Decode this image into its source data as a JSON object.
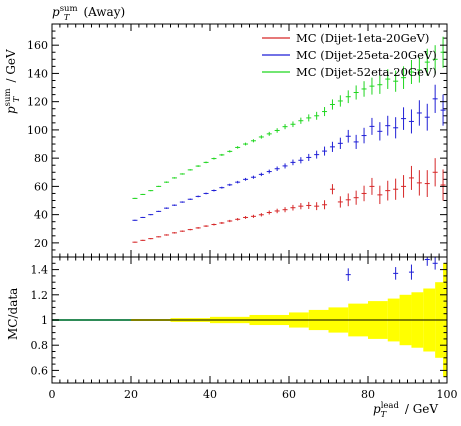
{
  "chart_data": [
    {
      "type": "scatter",
      "title": "p_T^sum (Away)",
      "title_parts": {
        "base": "p",
        "sub": "T",
        "sup": "sum",
        "suffix": " (Away)"
      },
      "ylabel_parts": {
        "base": "p",
        "sub": "T",
        "sup": "sum",
        "suffix": " / GeV"
      },
      "xlim": [
        0,
        100
      ],
      "ylim": [
        10,
        175
      ],
      "yticks": [
        20,
        40,
        60,
        80,
        100,
        120,
        140,
        160
      ],
      "legend_position": "top-right",
      "series": [
        {
          "name": "MC (Dijet-1eta-20GeV)",
          "color": "#d62728",
          "x": [
            21,
            23,
            25,
            27,
            29,
            31,
            33,
            35,
            37,
            39,
            41,
            43,
            45,
            47,
            49,
            51,
            53,
            55,
            57,
            59,
            61,
            63,
            65,
            67,
            69,
            71,
            73,
            75,
            77,
            79,
            81,
            83,
            85,
            87,
            89,
            91,
            93,
            95,
            97,
            99
          ],
          "y": [
            20.5,
            21.8,
            23.0,
            24.3,
            25.6,
            27.1,
            28.3,
            29.4,
            30.6,
            31.9,
            33.0,
            34.1,
            35.5,
            36.7,
            38.0,
            38.8,
            39.9,
            41.5,
            42.6,
            43.5,
            44.9,
            46.0,
            46.5,
            46.0,
            47.0,
            58.0,
            49.0,
            50.5,
            52.0,
            55.0,
            60.0,
            54.0,
            57.0,
            58.0,
            60.0,
            66.0,
            62.5,
            62.0,
            70.0,
            61.0
          ],
          "err": [
            0.4,
            0.4,
            0.4,
            0.4,
            0.5,
            0.5,
            0.5,
            0.5,
            0.6,
            0.6,
            0.7,
            0.7,
            0.8,
            0.9,
            1.0,
            1.1,
            1.2,
            1.4,
            1.6,
            1.8,
            2.0,
            2.2,
            2.5,
            2.8,
            3.2,
            3.6,
            4.0,
            4.5,
            5.0,
            5.5,
            6.0,
            6.5,
            7.0,
            7.5,
            8.0,
            8.5,
            9.0,
            9.5,
            10.0,
            11.0
          ]
        },
        {
          "name": "MC (Dijet-25eta-20GeV)",
          "color": "#1f1fd6",
          "x": [
            21,
            23,
            25,
            27,
            29,
            31,
            33,
            35,
            37,
            39,
            41,
            43,
            45,
            47,
            49,
            51,
            53,
            55,
            57,
            59,
            61,
            63,
            65,
            67,
            69,
            71,
            73,
            75,
            77,
            79,
            81,
            83,
            85,
            87,
            89,
            91,
            93,
            95,
            97,
            99
          ],
          "y": [
            36.0,
            38.0,
            40.0,
            42.3,
            44.6,
            46.7,
            48.9,
            50.9,
            52.9,
            55.0,
            57.1,
            59.1,
            61.1,
            63.0,
            65.0,
            66.5,
            68.5,
            70.5,
            72.5,
            74.5,
            77.0,
            78.5,
            80.5,
            82.5,
            85.0,
            88.0,
            90.5,
            95.5,
            91.5,
            96.0,
            102.5,
            99.0,
            103.0,
            101.5,
            108.0,
            106.0,
            112.0,
            109.0,
            122.0,
            114.0
          ],
          "err": [
            0.4,
            0.4,
            0.4,
            0.4,
            0.5,
            0.5,
            0.5,
            0.5,
            0.6,
            0.6,
            0.7,
            0.7,
            0.8,
            0.9,
            1.0,
            1.1,
            1.2,
            1.4,
            1.6,
            1.8,
            2.0,
            2.2,
            2.5,
            2.8,
            3.2,
            3.6,
            4.0,
            4.5,
            5.0,
            5.5,
            6.0,
            6.5,
            7.0,
            7.5,
            8.0,
            8.5,
            9.0,
            9.5,
            10.0,
            11.0
          ]
        },
        {
          "name": "MC (Dijet-52eta-20GeV)",
          "color": "#1fd61f",
          "x": [
            21,
            23,
            25,
            27,
            29,
            31,
            33,
            35,
            37,
            39,
            41,
            43,
            45,
            47,
            49,
            51,
            53,
            55,
            57,
            59,
            61,
            63,
            65,
            67,
            69,
            71,
            73,
            75,
            77,
            79,
            81,
            83,
            85,
            87,
            89,
            91,
            93,
            95,
            97,
            99
          ],
          "y": [
            51.5,
            54.3,
            57.0,
            60.0,
            63.0,
            66.0,
            68.8,
            71.7,
            74.4,
            77.0,
            79.7,
            82.3,
            84.8,
            87.6,
            90.0,
            92.3,
            95.0,
            97.2,
            99.6,
            102.3,
            104.0,
            106.5,
            108.5,
            110.0,
            113.0,
            118.0,
            120.5,
            123.5,
            126.5,
            129.0,
            131.0,
            132.0,
            136.0,
            134.5,
            137.0,
            141.0,
            142.5,
            148.0,
            150.0,
            155.0
          ],
          "err": [
            0.4,
            0.4,
            0.4,
            0.4,
            0.5,
            0.5,
            0.5,
            0.5,
            0.6,
            0.6,
            0.7,
            0.7,
            0.8,
            0.9,
            1.0,
            1.1,
            1.2,
            1.4,
            1.6,
            1.8,
            2.0,
            2.2,
            2.5,
            2.8,
            3.2,
            3.6,
            4.0,
            4.5,
            5.0,
            5.5,
            6.0,
            6.5,
            7.0,
            7.5,
            8.0,
            8.5,
            9.0,
            9.5,
            10.0,
            11.0
          ]
        }
      ]
    },
    {
      "type": "area",
      "ylabel": "MC/data",
      "xlabel_parts": {
        "base": "p",
        "sub": "T",
        "sup": "lead",
        "suffix": " / GeV"
      },
      "xlim": [
        0,
        100
      ],
      "ylim": [
        0.5,
        1.5
      ],
      "xticks": [
        0,
        20,
        40,
        60,
        80,
        100
      ],
      "yticks": [
        0.6,
        0.8,
        1,
        1.2,
        1.4
      ],
      "reference_line": 1,
      "reference_colors": {
        "line": "#000000",
        "band_low_pt": "#2e8b57",
        "band": "#ffff00"
      },
      "band": {
        "x_edges": [
          0,
          20,
          30,
          40,
          50,
          60,
          65,
          70,
          75,
          80,
          85,
          88,
          91,
          94,
          97,
          99,
          100
        ],
        "half_width": [
          0.0,
          0.008,
          0.015,
          0.025,
          0.04,
          0.06,
          0.08,
          0.1,
          0.13,
          0.15,
          0.17,
          0.2,
          0.22,
          0.25,
          0.3,
          0.45
        ]
      },
      "points": [
        {
          "series": "MC (Dijet-25eta-20GeV)",
          "color": "#1f1fd6",
          "x": 75,
          "y": 1.36,
          "err": 0.05
        },
        {
          "series": "MC (Dijet-25eta-20GeV)",
          "color": "#1f1fd6",
          "x": 87,
          "y": 1.37,
          "err": 0.05
        },
        {
          "series": "MC (Dijet-25eta-20GeV)",
          "color": "#1f1fd6",
          "x": 91,
          "y": 1.38,
          "err": 0.06
        },
        {
          "series": "MC (Dijet-25eta-20GeV)",
          "color": "#1f1fd6",
          "x": 95,
          "y": 1.48,
          "err": 0.05
        },
        {
          "series": "MC (Dijet-25eta-20GeV)",
          "color": "#1f1fd6",
          "x": 97,
          "y": 1.45,
          "err": 0.05
        }
      ]
    }
  ]
}
